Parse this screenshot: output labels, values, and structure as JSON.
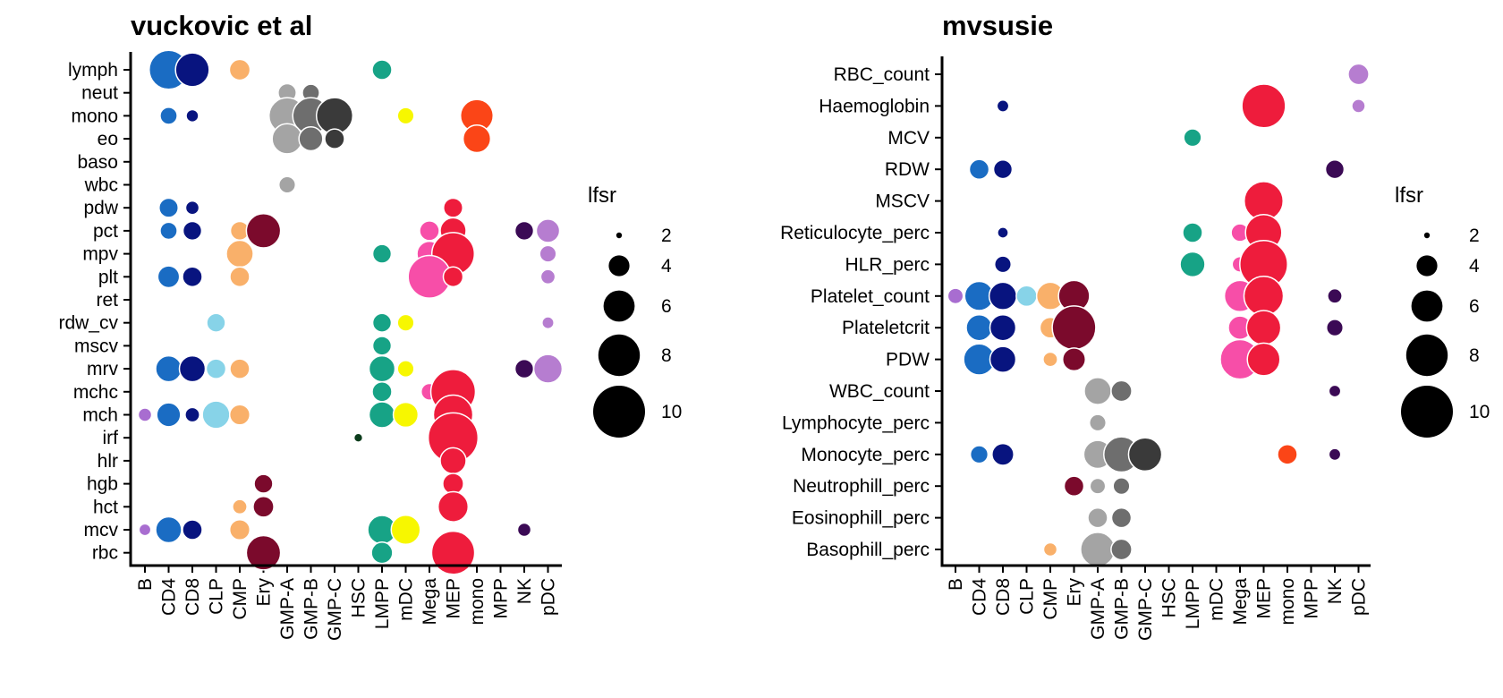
{
  "chart_data": [
    {
      "type": "scatter",
      "title": "vuckovic et al",
      "x_categories": [
        "B",
        "CD4",
        "CD8",
        "CLP",
        "CMP",
        "Ery",
        "GMP-A",
        "GMP-B",
        "GMP-C",
        "HSC",
        "LMPP",
        "mDC",
        "Mega",
        "MEP",
        "mono",
        "MPP",
        "NK",
        "pDC"
      ],
      "y_categories": [
        "lymph",
        "neut",
        "mono",
        "eo",
        "baso",
        "wbc",
        "pdw",
        "pct",
        "mpv",
        "plt",
        "ret",
        "rdw_cv",
        "mscv",
        "mrv",
        "mchc",
        "mch",
        "irf",
        "hlr",
        "hgb",
        "hct",
        "mcv",
        "rbc"
      ],
      "size_variable": "lfsr",
      "points": [
        {
          "x": "CD4",
          "y": "lymph",
          "size": 7.5
        },
        {
          "x": "CD8",
          "y": "lymph",
          "size": 6.5
        },
        {
          "x": "CMP",
          "y": "lymph",
          "size": 4
        },
        {
          "x": "LMPP",
          "y": "lymph",
          "size": 3.8
        },
        {
          "x": "GMP-A",
          "y": "neut",
          "size": 3.5
        },
        {
          "x": "GMP-B",
          "y": "neut",
          "size": 3.3
        },
        {
          "x": "CD4",
          "y": "mono",
          "size": 3.3
        },
        {
          "x": "CD8",
          "y": "mono",
          "size": 2.4
        },
        {
          "x": "GMP-A",
          "y": "mono",
          "size": 7
        },
        {
          "x": "GMP-B",
          "y": "mono",
          "size": 7
        },
        {
          "x": "GMP-C",
          "y": "mono",
          "size": 7
        },
        {
          "x": "mDC",
          "y": "mono",
          "size": 3.2
        },
        {
          "x": "mono",
          "y": "mono",
          "size": 6.3
        },
        {
          "x": "GMP-A",
          "y": "eo",
          "size": 5.8
        },
        {
          "x": "GMP-B",
          "y": "eo",
          "size": 4.6
        },
        {
          "x": "GMP-C",
          "y": "eo",
          "size": 3.8
        },
        {
          "x": "mono",
          "y": "eo",
          "size": 5.3
        },
        {
          "x": "GMP-A",
          "y": "wbc",
          "size": 3.2
        },
        {
          "x": "CD4",
          "y": "pdw",
          "size": 3.7
        },
        {
          "x": "CD8",
          "y": "pdw",
          "size": 2.6
        },
        {
          "x": "MEP",
          "y": "pdw",
          "size": 3.7
        },
        {
          "x": "CD4",
          "y": "pct",
          "size": 3.3
        },
        {
          "x": "CD8",
          "y": "pct",
          "size": 3.6
        },
        {
          "x": "CMP",
          "y": "pct",
          "size": 3.6
        },
        {
          "x": "Ery",
          "y": "pct",
          "size": 6.6
        },
        {
          "x": "Mega",
          "y": "pct",
          "size": 3.8
        },
        {
          "x": "MEP",
          "y": "pct",
          "size": 5
        },
        {
          "x": "NK",
          "y": "pct",
          "size": 3.6
        },
        {
          "x": "pDC",
          "y": "pct",
          "size": 4.5
        },
        {
          "x": "CMP",
          "y": "mpv",
          "size": 5.2
        },
        {
          "x": "LMPP",
          "y": "mpv",
          "size": 3.6
        },
        {
          "x": "Mega",
          "y": "mpv",
          "size": 4.8
        },
        {
          "x": "MEP",
          "y": "mpv",
          "size": 8.2
        },
        {
          "x": "pDC",
          "y": "mpv",
          "size": 3.2
        },
        {
          "x": "CD4",
          "y": "plt",
          "size": 4.2
        },
        {
          "x": "CD8",
          "y": "plt",
          "size": 3.8
        },
        {
          "x": "CMP",
          "y": "plt",
          "size": 3.8
        },
        {
          "x": "Mega",
          "y": "plt",
          "size": 8.2
        },
        {
          "x": "MEP",
          "y": "plt",
          "size": 3.8
        },
        {
          "x": "pDC",
          "y": "plt",
          "size": 2.8
        },
        {
          "x": "CLP",
          "y": "rdw_cv",
          "size": 3.6
        },
        {
          "x": "LMPP",
          "y": "rdw_cv",
          "size": 3.6
        },
        {
          "x": "mDC",
          "y": "rdw_cv",
          "size": 3.2
        },
        {
          "x": "pDC",
          "y": "rdw_cv",
          "size": 2.3
        },
        {
          "x": "LMPP",
          "y": "mscv",
          "size": 3.6
        },
        {
          "x": "CD4",
          "y": "mrv",
          "size": 5
        },
        {
          "x": "CD8",
          "y": "mrv",
          "size": 5
        },
        {
          "x": "CLP",
          "y": "mrv",
          "size": 3.8
        },
        {
          "x": "CMP",
          "y": "mrv",
          "size": 3.8
        },
        {
          "x": "LMPP",
          "y": "mrv",
          "size": 5
        },
        {
          "x": "mDC",
          "y": "mrv",
          "size": 3.2
        },
        {
          "x": "NK",
          "y": "mrv",
          "size": 3.6
        },
        {
          "x": "pDC",
          "y": "mrv",
          "size": 5.5
        },
        {
          "x": "LMPP",
          "y": "mchc",
          "size": 3.8
        },
        {
          "x": "Mega",
          "y": "mchc",
          "size": 3.2
        },
        {
          "x": "MEP",
          "y": "mchc",
          "size": 8.6
        },
        {
          "x": "B",
          "y": "mch",
          "size": 2.6
        },
        {
          "x": "CD4",
          "y": "mch",
          "size": 4.6
        },
        {
          "x": "CD8",
          "y": "mch",
          "size": 2.8
        },
        {
          "x": "CLP",
          "y": "mch",
          "size": 5.3
        },
        {
          "x": "CMP",
          "y": "mch",
          "size": 3.9
        },
        {
          "x": "LMPP",
          "y": "mch",
          "size": 5
        },
        {
          "x": "mDC",
          "y": "mch",
          "size": 4.8
        },
        {
          "x": "MEP",
          "y": "mch",
          "size": 7.6
        },
        {
          "x": "HSC",
          "y": "irf",
          "size": 1.7
        },
        {
          "x": "MEP",
          "y": "irf",
          "size": 9.6
        },
        {
          "x": "MEP",
          "y": "hlr",
          "size": 5
        },
        {
          "x": "Ery",
          "y": "hgb",
          "size": 3.6
        },
        {
          "x": "MEP",
          "y": "hgb",
          "size": 4
        },
        {
          "x": "CMP",
          "y": "hct",
          "size": 2.8
        },
        {
          "x": "Ery",
          "y": "hct",
          "size": 4
        },
        {
          "x": "MEP",
          "y": "hct",
          "size": 5.8
        },
        {
          "x": "B",
          "y": "mcv",
          "size": 2.3
        },
        {
          "x": "CD4",
          "y": "mcv",
          "size": 5
        },
        {
          "x": "CD8",
          "y": "mcv",
          "size": 3.8
        },
        {
          "x": "CMP",
          "y": "mcv",
          "size": 3.9
        },
        {
          "x": "LMPP",
          "y": "mcv",
          "size": 5.5
        },
        {
          "x": "mDC",
          "y": "mcv",
          "size": 5.6
        },
        {
          "x": "NK",
          "y": "mcv",
          "size": 2.6
        },
        {
          "x": "Ery",
          "y": "rbc",
          "size": 6.6
        },
        {
          "x": "LMPP",
          "y": "rbc",
          "size": 4.1
        },
        {
          "x": "MEP",
          "y": "rbc",
          "size": 8.3
        }
      ]
    },
    {
      "type": "scatter",
      "title": "mvsusie",
      "x_categories": [
        "B",
        "CD4",
        "CD8",
        "CLP",
        "CMP",
        "Ery",
        "GMP-A",
        "GMP-B",
        "GMP-C",
        "HSC",
        "LMPP",
        "mDC",
        "Mega",
        "MEP",
        "mono",
        "MPP",
        "NK",
        "pDC"
      ],
      "y_categories": [
        "RBC_count",
        "Haemoglobin",
        "MCV",
        "RDW",
        "MSCV",
        "Reticulocyte_perc",
        "HLR_perc",
        "Platelet_count",
        "Plateletcrit",
        "PDW",
        "WBC_count",
        "Lymphocyte_perc",
        "Monocyte_perc",
        "Neutrophill_perc",
        "Eosinophill_perc",
        "Basophill_perc"
      ],
      "size_variable": "lfsr",
      "points": [
        {
          "x": "pDC",
          "y": "RBC_count",
          "size": 4
        },
        {
          "x": "CD8",
          "y": "Haemoglobin",
          "size": 2.3
        },
        {
          "x": "MEP",
          "y": "Haemoglobin",
          "size": 8.4
        },
        {
          "x": "pDC",
          "y": "Haemoglobin",
          "size": 2.6
        },
        {
          "x": "LMPP",
          "y": "MCV",
          "size": 3.4
        },
        {
          "x": "CD4",
          "y": "RDW",
          "size": 3.8
        },
        {
          "x": "CD8",
          "y": "RDW",
          "size": 3.6
        },
        {
          "x": "NK",
          "y": "RDW",
          "size": 3.6
        },
        {
          "x": "MEP",
          "y": "MSCV",
          "size": 7.5
        },
        {
          "x": "CD8",
          "y": "Reticulocyte_perc",
          "size": 2.1
        },
        {
          "x": "LMPP",
          "y": "Reticulocyte_perc",
          "size": 3.8
        },
        {
          "x": "Mega",
          "y": "Reticulocyte_perc",
          "size": 3.4
        },
        {
          "x": "MEP",
          "y": "Reticulocyte_perc",
          "size": 7
        },
        {
          "x": "CD8",
          "y": "HLR_perc",
          "size": 3.2
        },
        {
          "x": "LMPP",
          "y": "HLR_perc",
          "size": 4.8
        },
        {
          "x": "Mega",
          "y": "HLR_perc",
          "size": 3
        },
        {
          "x": "MEP",
          "y": "HLR_perc",
          "size": 9.2
        },
        {
          "x": "B",
          "y": "Platelet_count",
          "size": 3
        },
        {
          "x": "CD4",
          "y": "Platelet_count",
          "size": 5.6
        },
        {
          "x": "CD8",
          "y": "Platelet_count",
          "size": 5.3
        },
        {
          "x": "CLP",
          "y": "Platelet_count",
          "size": 4
        },
        {
          "x": "CMP",
          "y": "Platelet_count",
          "size": 5.3
        },
        {
          "x": "Ery",
          "y": "Platelet_count",
          "size": 6
        },
        {
          "x": "Mega",
          "y": "Platelet_count",
          "size": 6
        },
        {
          "x": "MEP",
          "y": "Platelet_count",
          "size": 7.6
        },
        {
          "x": "NK",
          "y": "Platelet_count",
          "size": 2.8
        },
        {
          "x": "CD4",
          "y": "Plateletcrit",
          "size": 5
        },
        {
          "x": "CD8",
          "y": "Plateletcrit",
          "size": 5
        },
        {
          "x": "CMP",
          "y": "Plateletcrit",
          "size": 4
        },
        {
          "x": "Ery",
          "y": "Plateletcrit",
          "size": 8.4
        },
        {
          "x": "Mega",
          "y": "Plateletcrit",
          "size": 4.5
        },
        {
          "x": "MEP",
          "y": "Plateletcrit",
          "size": 6.6
        },
        {
          "x": "NK",
          "y": "Plateletcrit",
          "size": 3.2
        },
        {
          "x": "CD4",
          "y": "PDW",
          "size": 6
        },
        {
          "x": "CD8",
          "y": "PDW",
          "size": 5
        },
        {
          "x": "CMP",
          "y": "PDW",
          "size": 2.8
        },
        {
          "x": "Ery",
          "y": "PDW",
          "size": 4.4
        },
        {
          "x": "Mega",
          "y": "PDW",
          "size": 7.6
        },
        {
          "x": "MEP",
          "y": "PDW",
          "size": 6.3
        },
        {
          "x": "GMP-A",
          "y": "WBC_count",
          "size": 5.2
        },
        {
          "x": "GMP-B",
          "y": "WBC_count",
          "size": 4
        },
        {
          "x": "NK",
          "y": "WBC_count",
          "size": 2.3
        },
        {
          "x": "GMP-A",
          "y": "Lymphocyte_perc",
          "size": 3.2
        },
        {
          "x": "CD4",
          "y": "Monocyte_perc",
          "size": 3.4
        },
        {
          "x": "CD8",
          "y": "Monocyte_perc",
          "size": 4.2
        },
        {
          "x": "GMP-A",
          "y": "Monocyte_perc",
          "size": 5.4
        },
        {
          "x": "GMP-B",
          "y": "Monocyte_perc",
          "size": 6.8
        },
        {
          "x": "GMP-C",
          "y": "Monocyte_perc",
          "size": 6.4
        },
        {
          "x": "mono",
          "y": "Monocyte_perc",
          "size": 3.8
        },
        {
          "x": "NK",
          "y": "Monocyte_perc",
          "size": 2.3
        },
        {
          "x": "Ery",
          "y": "Neutrophill_perc",
          "size": 3.8
        },
        {
          "x": "GMP-A",
          "y": "Neutrophill_perc",
          "size": 3
        },
        {
          "x": "GMP-B",
          "y": "Neutrophill_perc",
          "size": 3.2
        },
        {
          "x": "GMP-A",
          "y": "Eosinophill_perc",
          "size": 3.8
        },
        {
          "x": "GMP-B",
          "y": "Eosinophill_perc",
          "size": 3.8
        },
        {
          "x": "CMP",
          "y": "Basophill_perc",
          "size": 2.6
        },
        {
          "x": "GMP-A",
          "y": "Basophill_perc",
          "size": 6.6
        },
        {
          "x": "GMP-B",
          "y": "Basophill_perc",
          "size": 4
        }
      ]
    }
  ],
  "legends": [
    {
      "title": "lfsr",
      "entries": [
        {
          "label": "2",
          "size": 2
        },
        {
          "label": "4",
          "size": 4
        },
        {
          "label": "6",
          "size": 6
        },
        {
          "label": "8",
          "size": 8
        },
        {
          "label": "10",
          "size": 10
        }
      ]
    },
    {
      "title": "lfsr",
      "entries": [
        {
          "label": "2",
          "size": 2
        },
        {
          "label": "4",
          "size": 4
        },
        {
          "label": "6",
          "size": 6
        },
        {
          "label": "8",
          "size": 8
        },
        {
          "label": "10",
          "size": 10
        }
      ]
    }
  ],
  "cell_type_colors": {
    "B": "#a86dd0",
    "CD4": "#1a6cc3",
    "CD8": "#08147f",
    "CLP": "#87d3e8",
    "CMP": "#f9b06a",
    "Ery": "#7b0a2c",
    "GMP-A": "#a4a4a4",
    "GMP-B": "#6e6e6e",
    "GMP-C": "#3a3a3a",
    "HSC": "#0c3d1c",
    "LMPP": "#17a386",
    "mDC": "#f7f700",
    "Mega": "#f74ea8",
    "MEP": "#ee1c3c",
    "mono": "#fb4517",
    "MPP": "#555555",
    "NK": "#3b0a55",
    "pDC": "#b67dd0"
  }
}
